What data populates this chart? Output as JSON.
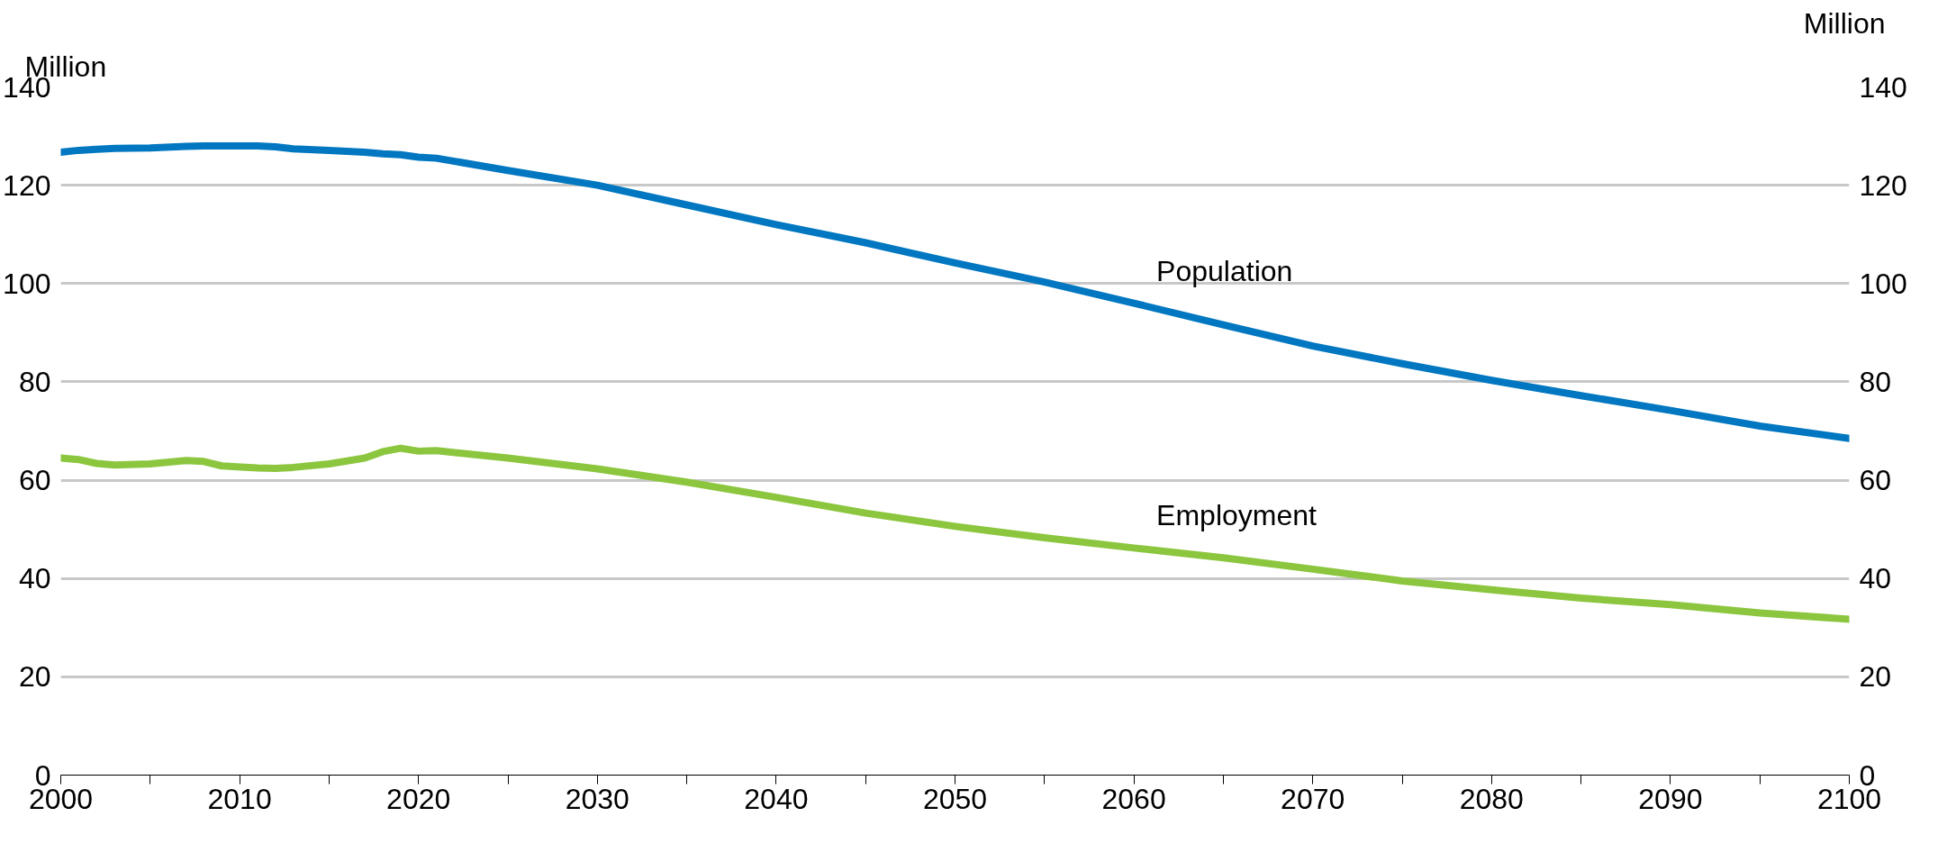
{
  "chart_data": {
    "type": "line",
    "ylabel": "Million",
    "y2label": "Million",
    "x": [
      2000,
      2001,
      2002,
      2003,
      2005,
      2007,
      2008,
      2009,
      2011,
      2012,
      2013,
      2015,
      2017,
      2018,
      2019,
      2020,
      2021,
      2025,
      2030,
      2035,
      2040,
      2045,
      2050,
      2055,
      2060,
      2065,
      2070,
      2075,
      2080,
      2085,
      2090,
      2095,
      2100
    ],
    "series": [
      {
        "name": "Population",
        "color": "#0077c0",
        "values": [
          126.7,
          127.1,
          127.3,
          127.5,
          127.6,
          127.9,
          128,
          128,
          128,
          127.8,
          127.4,
          127.1,
          126.7,
          126.4,
          126.2,
          125.7,
          125.5,
          123,
          120,
          116,
          112,
          108.3,
          104.2,
          100.3,
          96,
          91.6,
          87.3,
          83.7,
          80.3,
          77.2,
          74.2,
          71,
          68.5
        ]
      },
      {
        "name": "Employment",
        "color": "#8cc63f",
        "values": [
          64.5,
          64.2,
          63.4,
          63.1,
          63.3,
          64,
          63.8,
          62.9,
          62.5,
          62.4,
          62.6,
          63.3,
          64.5,
          65.8,
          66.5,
          65.9,
          66,
          64.5,
          62.3,
          59.6,
          56.5,
          53.3,
          50.6,
          48.3,
          46.2,
          44.2,
          41.9,
          39.5,
          37.7,
          36,
          34.7,
          33,
          31.7
        ]
      }
    ],
    "xlim": [
      2000,
      2100
    ],
    "xticks": [
      2000,
      {
        "value": 2005,
        "label": null
      },
      2010,
      {
        "value": 2015,
        "label": null
      },
      2020,
      {
        "value": 2025,
        "label": null
      },
      2030,
      {
        "value": 2035,
        "label": null
      },
      2040,
      {
        "value": 2045,
        "label": null
      },
      2050,
      {
        "value": 2055,
        "label": null
      },
      2060,
      {
        "value": 2065,
        "label": null
      },
      2070,
      {
        "value": 2075,
        "label": null
      },
      2080,
      {
        "value": 2085,
        "label": null
      },
      2090,
      {
        "value": 2095,
        "label": null
      },
      2100
    ],
    "ylim": [
      0,
      140
    ],
    "yticks": [
      0,
      20,
      40,
      60,
      80,
      100,
      120,
      140
    ],
    "y2lim": [
      0,
      140
    ],
    "y2ticks": [
      0,
      20,
      40,
      60,
      80,
      100,
      120,
      140
    ],
    "grid": "y",
    "marker": "none",
    "line_style": "solid"
  }
}
